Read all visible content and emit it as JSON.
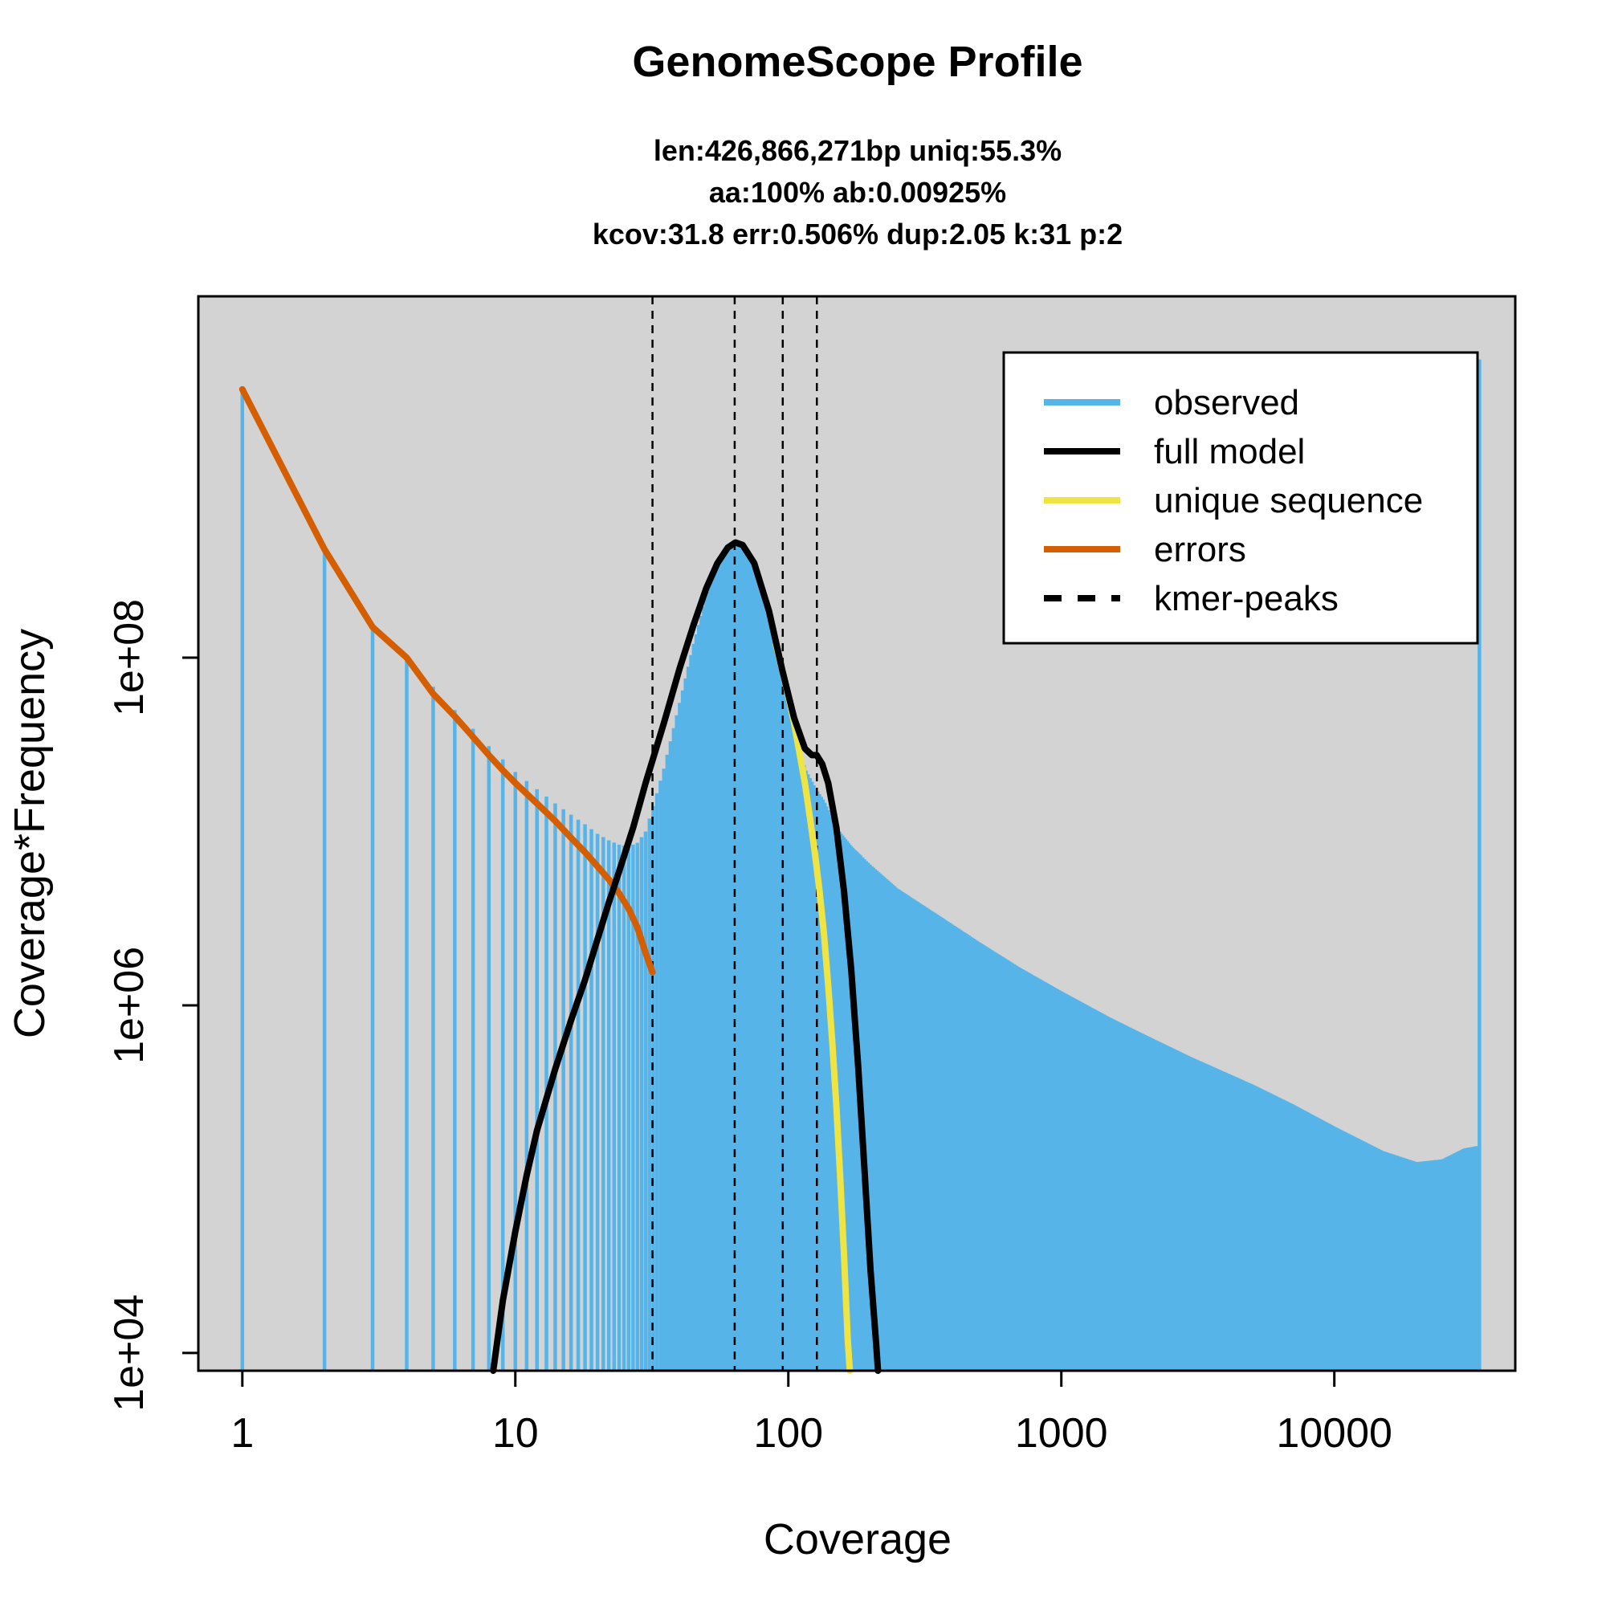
{
  "chart_data": {
    "type": "bar",
    "title": "GenomeScope Profile",
    "subtitle_lines": [
      "len:426,866,271bp uniq:55.3%",
      "aa:100% ab:0.00925%",
      "kcov:31.8 err:0.506%  dup:2.05  k:31 p:2"
    ],
    "xlabel": "Coverage",
    "ylabel": "Coverage*Frequency",
    "x_scale": "log",
    "y_scale": "log",
    "xlim": [
      0.69,
      46000
    ],
    "ylim": [
      7900,
      12000000000.0
    ],
    "x_ticks": [
      {
        "value": 1,
        "label": "1"
      },
      {
        "value": 10,
        "label": "10"
      },
      {
        "value": 100,
        "label": "100"
      },
      {
        "value": 1000,
        "label": "1000"
      },
      {
        "value": 10000,
        "label": "10000"
      }
    ],
    "y_ticks": [
      {
        "value": 10000,
        "label": "1e+04"
      },
      {
        "value": 1000000,
        "label": "1e+06"
      },
      {
        "value": 100000000,
        "label": "1e+08"
      }
    ],
    "plot_background": "#d3d3d3",
    "legend_position": "top-right",
    "series": [
      {
        "name": "observed",
        "kind": "histogram",
        "color": "#56b4e9",
        "points": [
          [
            1,
            3500000000.0
          ],
          [
            2,
            420000000.0
          ],
          [
            3,
            150000000.0
          ],
          [
            4,
            100000000.0
          ],
          [
            5,
            68000000.0
          ],
          [
            6,
            50000000.0
          ],
          [
            7,
            39000000.0
          ],
          [
            8,
            31000000.0
          ],
          [
            9,
            26000000.0
          ],
          [
            10,
            22000000.0
          ],
          [
            12,
            17500000.0
          ],
          [
            14,
            14500000.0
          ],
          [
            16,
            12500000.0
          ],
          [
            18,
            11000000.0
          ],
          [
            20,
            9700000.0
          ],
          [
            22,
            8900000.0
          ],
          [
            24,
            8400000.0
          ],
          [
            26,
            8200000.0
          ],
          [
            28,
            8600000.0
          ],
          [
            30,
            10000000.0
          ],
          [
            32,
            14000000.0
          ],
          [
            35,
            23000000.0
          ],
          [
            40,
            55000000.0
          ],
          [
            45,
            120000000.0
          ],
          [
            50,
            220000000.0
          ],
          [
            55,
            330000000.0
          ],
          [
            60,
            420000000.0
          ],
          [
            64,
            460000000.0
          ],
          [
            68,
            440000000.0
          ],
          [
            75,
            330000000.0
          ],
          [
            85,
            175000000.0
          ],
          [
            95,
            80000000.0
          ],
          [
            105,
            38000000.0
          ],
          [
            115,
            23000000.0
          ],
          [
            125,
            18000000.0
          ],
          [
            135,
            15000000.0
          ],
          [
            150,
            10500000.0
          ],
          [
            170,
            8200000.0
          ],
          [
            200,
            6400000.0
          ],
          [
            250,
            4700000.0
          ],
          [
            300,
            3900000.0
          ],
          [
            400,
            2900000.0
          ],
          [
            500,
            2300000.0
          ],
          [
            700,
            1650000.0
          ],
          [
            1000,
            1200000.0
          ],
          [
            1500,
            850000.0
          ],
          [
            2000,
            680000.0
          ],
          [
            3000,
            500000.0
          ],
          [
            5000,
            350000.0
          ],
          [
            7000,
            270000.0
          ],
          [
            10000,
            200000.0
          ],
          [
            15000,
            145000.0
          ],
          [
            20000,
            125000.0
          ],
          [
            25000,
            130000.0
          ],
          [
            30000,
            150000.0
          ],
          [
            33500,
            155000.0
          ],
          [
            34000,
            5200000000.0
          ]
        ]
      },
      {
        "name": "full model",
        "kind": "line",
        "color": "#000000",
        "points": [
          [
            8.3,
            7900
          ],
          [
            9,
            20000.0
          ],
          [
            10,
            50000.0
          ],
          [
            11,
            105000.0
          ],
          [
            12,
            190000.0
          ],
          [
            14,
            430000.0
          ],
          [
            16,
            820000.0
          ],
          [
            18,
            1400000.0
          ],
          [
            20,
            2400000.0
          ],
          [
            22,
            3900000.0
          ],
          [
            24,
            5900000.0
          ],
          [
            27,
            10500000.0
          ],
          [
            30,
            19000000.0
          ],
          [
            35,
            42000000.0
          ],
          [
            40,
            87000000.0
          ],
          [
            45,
            155000000.0
          ],
          [
            50,
            250000000.0
          ],
          [
            55,
            350000000.0
          ],
          [
            60,
            430000000.0
          ],
          [
            64,
            460000000.0
          ],
          [
            68,
            445000000.0
          ],
          [
            75,
            350000000.0
          ],
          [
            85,
            185000000.0
          ],
          [
            95,
            85000000.0
          ],
          [
            105,
            45000000.0
          ],
          [
            115,
            30000000.0
          ],
          [
            122,
            27500000.0
          ],
          [
            127,
            27500000.0
          ],
          [
            133,
            24500000.0
          ],
          [
            140,
            19000000.0
          ],
          [
            150,
            10500000.0
          ],
          [
            160,
            4500000.0
          ],
          [
            170,
            1600000.0
          ],
          [
            180,
            460000.0
          ],
          [
            190,
            115000.0
          ],
          [
            200,
            30000.0
          ],
          [
            210,
            11000.0
          ],
          [
            213,
            7900
          ]
        ]
      },
      {
        "name": "unique sequence",
        "kind": "line",
        "color": "#f0e442",
        "points": [
          [
            90,
            120000000.0
          ],
          [
            95,
            85000000.0
          ],
          [
            100,
            60000000.0
          ],
          [
            105,
            42000000.0
          ],
          [
            110,
            28000000.0
          ],
          [
            115,
            19000000.0
          ],
          [
            120,
            12000000.0
          ],
          [
            125,
            7600000.0
          ],
          [
            130,
            4600000.0
          ],
          [
            135,
            2600000.0
          ],
          [
            140,
            1300000.0
          ],
          [
            145,
            600000.0
          ],
          [
            150,
            260000.0
          ],
          [
            155,
            100000.0
          ],
          [
            160,
            36000.0
          ],
          [
            165,
            12000.0
          ],
          [
            168,
            7900
          ]
        ]
      },
      {
        "name": "errors",
        "kind": "line",
        "color": "#d55e00",
        "points": [
          [
            1,
            3500000000.0
          ],
          [
            2,
            420000000.0
          ],
          [
            3,
            150000000.0
          ],
          [
            4,
            100000000.0
          ],
          [
            5,
            62000000.0
          ],
          [
            6,
            46000000.0
          ],
          [
            7,
            35000000.0
          ],
          [
            8,
            27500000.0
          ],
          [
            9,
            22500000.0
          ],
          [
            10,
            19000000.0
          ],
          [
            12,
            14500000.0
          ],
          [
            14,
            11500000.0
          ],
          [
            16,
            9200000.0
          ],
          [
            18,
            7600000.0
          ],
          [
            20,
            6300000.0
          ],
          [
            22,
            5300000.0
          ],
          [
            24,
            4400000.0
          ],
          [
            26,
            3600000.0
          ],
          [
            28,
            2800000.0
          ],
          [
            30,
            2000000.0
          ],
          [
            31.8,
            1550000.0
          ]
        ]
      }
    ],
    "kmer_peaks": [
      31.8,
      63.6,
      95.4,
      127.2
    ],
    "legend": [
      {
        "label": "observed",
        "color": "#56b4e9",
        "style": "solid"
      },
      {
        "label": "full model",
        "color": "#000000",
        "style": "solid"
      },
      {
        "label": "unique sequence",
        "color": "#f0e442",
        "style": "solid"
      },
      {
        "label": "errors",
        "color": "#d55e00",
        "style": "solid"
      },
      {
        "label": "kmer-peaks",
        "color": "#000000",
        "style": "dashed"
      }
    ]
  }
}
